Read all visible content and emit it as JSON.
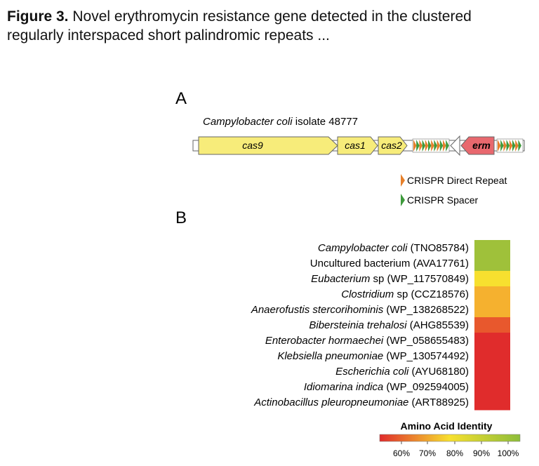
{
  "caption": {
    "label": "Figure 3.",
    "text": " Novel erythromycin resistance gene detected in the clustered regularly interspaced short palindromic repeats ..."
  },
  "panel_a": {
    "label": "A",
    "organism_italic": "Campylobacter coli",
    "organism_rest": " isolate 48777",
    "genes": [
      "cas9",
      "cas1",
      "cas2",
      "erm"
    ],
    "legend": [
      "CRISPR Direct Repeat",
      "CRISPR Spacer"
    ],
    "colors": {
      "cas_gene": "#f7ec7a",
      "erm_gene": "#e8686e",
      "direct_repeat": "#e6802b",
      "spacer": "#3e9a3c"
    }
  },
  "panel_b": {
    "label": "B",
    "rows": [
      {
        "italic": "Campylobacter coli",
        "rest": " (TNO85784)",
        "color": "#9fc13a"
      },
      {
        "italic": "",
        "rest": "Uncultured bacterium (AVA17761)",
        "color": "#9fc13a"
      },
      {
        "italic": "Eubacterium",
        "rest": " sp (WP_117570849)",
        "color": "#f7e02f"
      },
      {
        "italic": "Clostridium",
        "rest": " sp (CCZ18576)",
        "color": "#f5b12f"
      },
      {
        "italic": "Anaerofustis stercorihominis",
        "rest": " (WP_138268522)",
        "color": "#f5b12f"
      },
      {
        "italic": "Bibersteinia trehalosi",
        "rest": " (AHG85539)",
        "color": "#e8582d"
      },
      {
        "italic": "Enterobacter hormaechei",
        "rest": " (WP_058655483)",
        "color": "#e02c2c"
      },
      {
        "italic": "Klebsiella pneumoniae",
        "rest": " (WP_130574492)",
        "color": "#e02c2c"
      },
      {
        "italic": "Escherichia coli",
        "rest": " (AYU68180)",
        "color": "#e02c2c"
      },
      {
        "italic": "Idiomarina indica",
        "rest": " (WP_092594005)",
        "color": "#e02c2c"
      },
      {
        "italic": "Actinobacillus pleuropneumoniae",
        "rest": " (ART88925)",
        "color": "#e02c2c"
      }
    ],
    "colorbar_title": "Amino Acid Identity",
    "colorbar_ticks": [
      "60%",
      "70%",
      "80%",
      "90%",
      "100%"
    ],
    "colorbar_colors": [
      "#e02c2c",
      "#f7e02f",
      "#8dbd3a"
    ]
  },
  "chart_data": {
    "type": "heatmap",
    "title": "Amino Acid Identity",
    "categories": [
      "Campylobacter coli (TNO85784)",
      "Uncultured bacterium (AVA17761)",
      "Eubacterium sp (WP_117570849)",
      "Clostridium sp (CCZ18576)",
      "Anaerofustis stercorihominis (WP_138268522)",
      "Bibersteinia trehalosi (AHG85539)",
      "Enterobacter hormaechei (WP_058655483)",
      "Klebsiella pneumoniae (WP_130574492)",
      "Escherichia coli (AYU68180)",
      "Idiomarina indica (WP_092594005)",
      "Actinobacillus pleuropneumoniae (ART88925)"
    ],
    "values": [
      97,
      97,
      78,
      73,
      73,
      65,
      60,
      60,
      60,
      60,
      60
    ],
    "color_range": [
      55,
      100
    ]
  }
}
